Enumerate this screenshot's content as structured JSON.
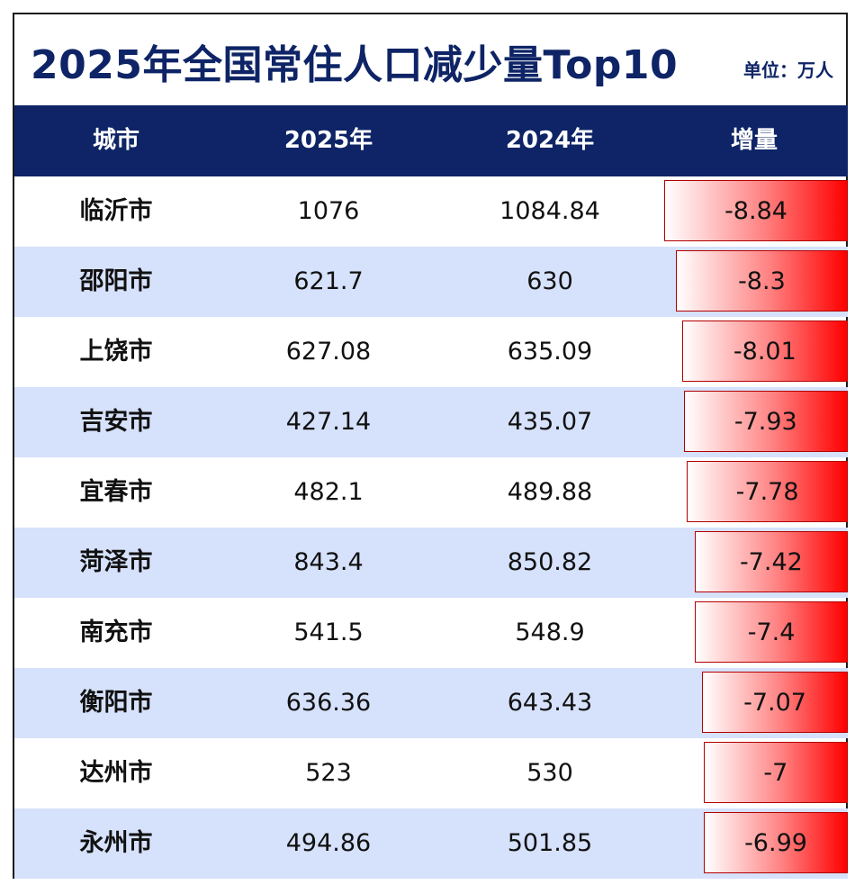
{
  "title": "2025年全国常住人口减少量Top10",
  "unit": "单位：万人",
  "colors": {
    "header_bg": "#0e2466",
    "title": "#0e2466",
    "alt_row": "#d6e1fb",
    "bar": "#ff0000"
  },
  "chart_data": {
    "type": "table",
    "title": "2025年全国常住人口减少量Top10",
    "unit": "单位：万人",
    "columns": [
      "城市",
      "2025年",
      "2024年",
      "增量"
    ],
    "rows": [
      {
        "city": "临沂市",
        "y2025": "1076",
        "y2024": "1084.84",
        "change": "-8.84"
      },
      {
        "city": "邵阳市",
        "y2025": "621.7",
        "y2024": "630",
        "change": "-8.3"
      },
      {
        "city": "上饶市",
        "y2025": "627.08",
        "y2024": "635.09",
        "change": "-8.01"
      },
      {
        "city": "吉安市",
        "y2025": "427.14",
        "y2024": "435.07",
        "change": "-7.93"
      },
      {
        "city": "宜春市",
        "y2025": "482.1",
        "y2024": "489.88",
        "change": "-7.78"
      },
      {
        "city": "菏泽市",
        "y2025": "843.4",
        "y2024": "850.82",
        "change": "-7.42"
      },
      {
        "city": "南充市",
        "y2025": "541.5",
        "y2024": "548.9",
        "change": "-7.4"
      },
      {
        "city": "衡阳市",
        "y2025": "636.36",
        "y2024": "643.43",
        "change": "-7.07"
      },
      {
        "city": "达州市",
        "y2025": "523",
        "y2024": "530",
        "change": "-7"
      },
      {
        "city": "永州市",
        "y2025": "494.86",
        "y2024": "501.85",
        "change": "-6.99"
      }
    ]
  }
}
